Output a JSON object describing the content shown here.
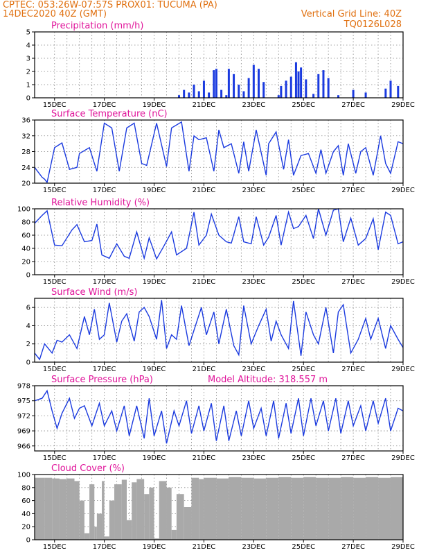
{
  "header": {
    "left1": "CPTEC:   053:26W-07:57S   PROX01: TUCUMA (PA)",
    "left2": "14DEC2020 40Z (GMT)",
    "right1": "Vertical Grid Line: 40Z",
    "right2": "TQ0126L028"
  },
  "colors": {
    "header": "#e07010",
    "panel_title": "#e0149a",
    "series": "#1a3adf",
    "cloud": "#a9a9a9"
  },
  "chart_data": [
    {
      "type": "bar",
      "title": "Precipitation (mm/h)",
      "x_ticks": [
        "15DEC",
        "17DEC",
        "19DEC",
        "21DEC",
        "23DEC",
        "25DEC",
        "27DEC",
        "29DEC"
      ],
      "xlim_days": [
        14.2,
        29.0
      ],
      "ylim": [
        0,
        5
      ],
      "yticks": [
        0,
        1,
        2,
        3,
        4,
        5
      ],
      "grid": true,
      "x": [
        20.0,
        20.2,
        20.4,
        20.6,
        20.8,
        21.0,
        21.2,
        21.4,
        21.5,
        21.7,
        21.9,
        22.0,
        22.2,
        22.4,
        22.6,
        22.8,
        23.0,
        23.2,
        23.4,
        24.0,
        24.1,
        24.3,
        24.5,
        24.7,
        24.8,
        24.9,
        25.1,
        25.4,
        25.6,
        25.8,
        26.0,
        26.4,
        27.0,
        27.5,
        28.3,
        28.5,
        28.8
      ],
      "values": [
        0.2,
        0.6,
        0.4,
        1.0,
        0.5,
        1.3,
        0.4,
        2.1,
        2.2,
        0.6,
        0.2,
        2.2,
        1.8,
        1.0,
        0.5,
        1.5,
        2.5,
        2.2,
        1.2,
        0.2,
        0.9,
        1.3,
        1.6,
        2.7,
        2.0,
        2.3,
        1.4,
        0.3,
        1.8,
        2.1,
        1.5,
        0.2,
        0.6,
        0.4,
        0.7,
        1.3,
        0.9
      ]
    },
    {
      "type": "line",
      "title": "Surface Temperature (nC)",
      "x_ticks": [
        "15DEC",
        "17DEC",
        "19DEC",
        "21DEC",
        "23DEC",
        "25DEC",
        "27DEC",
        "29DEC"
      ],
      "xlim_days": [
        14.2,
        29.0
      ],
      "ylim": [
        20,
        36
      ],
      "yticks": [
        20,
        24,
        28,
        32,
        36
      ],
      "grid": true,
      "x": [
        14.2,
        14.5,
        14.6,
        14.7,
        15.0,
        15.3,
        15.6,
        15.9,
        16.0,
        16.4,
        16.7,
        17.0,
        17.3,
        17.6,
        17.9,
        18.2,
        18.5,
        18.7,
        19.1,
        19.5,
        19.7,
        20.1,
        20.4,
        20.6,
        20.8,
        21.1,
        21.4,
        21.6,
        21.8,
        22.1,
        22.4,
        22.6,
        22.8,
        23.1,
        23.5,
        23.6,
        23.9,
        24.2,
        24.4,
        24.6,
        24.9,
        25.2,
        25.5,
        25.7,
        25.9,
        26.2,
        26.4,
        26.6,
        26.8,
        27.1,
        27.3,
        27.5,
        27.8,
        28.1,
        28.3,
        28.5,
        28.8,
        29.0
      ],
      "values": [
        24.0,
        21.5,
        21.0,
        20.2,
        29.0,
        30.2,
        23.5,
        24.0,
        27.5,
        29.0,
        23.0,
        35.2,
        34.0,
        23.0,
        34.0,
        35.2,
        25.0,
        24.5,
        35.2,
        24.2,
        34.0,
        35.5,
        23.0,
        32.0,
        31.0,
        31.5,
        23.0,
        33.5,
        29.0,
        30.0,
        22.5,
        30.5,
        23.0,
        33.5,
        22.0,
        30.0,
        33.0,
        23.5,
        31.0,
        22.0,
        27.0,
        27.5,
        22.5,
        28.5,
        22.5,
        28.0,
        29.5,
        22.0,
        30.0,
        22.5,
        28.0,
        29.0,
        22.0,
        32.0,
        25.0,
        22.5,
        30.5,
        30.0
      ]
    },
    {
      "type": "line",
      "title": "Relative Humidity (%)",
      "x_ticks": [
        "15DEC",
        "17DEC",
        "19DEC",
        "21DEC",
        "23DEC",
        "25DEC",
        "27DEC",
        "29DEC"
      ],
      "xlim_days": [
        14.2,
        29.0
      ],
      "ylim": [
        0,
        100
      ],
      "yticks": [
        0,
        20,
        40,
        60,
        80,
        100
      ],
      "grid": true,
      "x": [
        14.2,
        14.5,
        14.7,
        15.0,
        15.3,
        15.7,
        15.9,
        16.2,
        16.5,
        16.7,
        16.9,
        17.2,
        17.5,
        17.8,
        18.0,
        18.3,
        18.6,
        18.8,
        19.1,
        19.4,
        19.7,
        19.9,
        20.3,
        20.6,
        20.8,
        21.1,
        21.3,
        21.6,
        21.9,
        22.1,
        22.4,
        22.6,
        22.9,
        23.1,
        23.4,
        23.6,
        23.9,
        24.1,
        24.4,
        24.6,
        24.8,
        25.1,
        25.4,
        25.6,
        25.9,
        26.2,
        26.4,
        26.6,
        26.9,
        27.2,
        27.5,
        27.8,
        28.0,
        28.3,
        28.5,
        28.8,
        29.0
      ],
      "values": [
        78,
        90,
        97,
        45,
        44,
        68,
        76,
        50,
        52,
        77,
        30,
        25,
        47,
        28,
        25,
        65,
        25,
        56,
        24,
        44,
        65,
        30,
        40,
        95,
        45,
        60,
        92,
        60,
        50,
        48,
        88,
        50,
        47,
        88,
        45,
        57,
        90,
        45,
        95,
        70,
        73,
        90,
        55,
        100,
        60,
        98,
        100,
        50,
        86,
        45,
        55,
        85,
        38,
        95,
        90,
        47,
        50
      ]
    },
    {
      "type": "line",
      "title": "Surface Wind (m/s)",
      "x_ticks": [
        "15DEC",
        "17DEC",
        "19DEC",
        "21DEC",
        "23DEC",
        "25DEC",
        "27DEC",
        "29DEC"
      ],
      "xlim_days": [
        14.2,
        29.0
      ],
      "ylim": [
        0,
        7
      ],
      "yticks": [
        0,
        2,
        4,
        6
      ],
      "grid": true,
      "x": [
        14.2,
        14.4,
        14.6,
        14.9,
        15.1,
        15.3,
        15.6,
        15.9,
        16.2,
        16.4,
        16.6,
        16.8,
        17.0,
        17.2,
        17.5,
        17.7,
        17.9,
        18.2,
        18.4,
        18.6,
        18.8,
        19.1,
        19.3,
        19.5,
        19.7,
        19.9,
        20.1,
        20.4,
        20.6,
        20.9,
        21.1,
        21.4,
        21.6,
        21.9,
        22.2,
        22.4,
        22.6,
        22.9,
        23.2,
        23.5,
        23.7,
        23.9,
        24.1,
        24.4,
        24.6,
        24.9,
        25.1,
        25.4,
        25.6,
        25.9,
        26.2,
        26.4,
        26.6,
        26.9,
        27.2,
        27.5,
        27.7,
        28.0,
        28.3,
        28.5,
        28.8,
        29.0
      ],
      "values": [
        1.0,
        0.3,
        2.0,
        1.0,
        2.4,
        2.2,
        3.0,
        1.5,
        5.0,
        3.0,
        5.8,
        2.5,
        3.0,
        6.5,
        2.2,
        4.5,
        5.3,
        2.3,
        5.5,
        6.0,
        5.0,
        2.5,
        6.8,
        1.5,
        3.0,
        2.5,
        6.2,
        1.8,
        3.5,
        6.0,
        3.0,
        5.5,
        2.0,
        5.8,
        1.8,
        0.8,
        6.2,
        2.0,
        4.0,
        5.8,
        2.3,
        4.5,
        3.0,
        1.5,
        6.7,
        0.7,
        5.5,
        3.0,
        2.0,
        6.0,
        1.0,
        5.5,
        6.3,
        1.0,
        2.5,
        4.8,
        2.5,
        4.8,
        1.5,
        4.0,
        2.5,
        1.6
      ]
    },
    {
      "type": "line",
      "title": "Surface Pressure (hPa)",
      "annotation": "Model Altitude: 318.557 m",
      "x_ticks": [
        "15DEC",
        "17DEC",
        "19DEC",
        "21DEC",
        "23DEC",
        "25DEC",
        "27DEC",
        "29DEC"
      ],
      "xlim_days": [
        14.2,
        29.0
      ],
      "ylim": [
        965,
        978
      ],
      "yticks": [
        966,
        969,
        972,
        975,
        978
      ],
      "grid": true,
      "x": [
        14.2,
        14.5,
        14.7,
        14.9,
        15.1,
        15.3,
        15.6,
        15.8,
        16.0,
        16.2,
        16.5,
        16.8,
        17.0,
        17.3,
        17.5,
        17.8,
        18.0,
        18.3,
        18.6,
        18.8,
        19.0,
        19.3,
        19.5,
        19.8,
        20.0,
        20.3,
        20.5,
        20.8,
        21.0,
        21.3,
        21.5,
        21.8,
        22.0,
        22.3,
        22.5,
        22.8,
        23.0,
        23.3,
        23.5,
        23.8,
        24.0,
        24.3,
        24.5,
        24.8,
        25.0,
        25.3,
        25.5,
        25.8,
        26.0,
        26.3,
        26.5,
        26.8,
        27.0,
        27.3,
        27.5,
        27.8,
        28.0,
        28.3,
        28.5,
        28.8,
        29.0
      ],
      "values": [
        975.0,
        975.5,
        977.0,
        973.0,
        969.5,
        972.5,
        975.5,
        971.5,
        973.5,
        974.0,
        970.0,
        974.5,
        970.0,
        973.0,
        969.0,
        974.0,
        968.0,
        974.0,
        967.5,
        975.5,
        968.0,
        973.0,
        966.5,
        973.0,
        970.0,
        975.0,
        968.5,
        974.0,
        969.0,
        974.5,
        967.0,
        974.0,
        967.0,
        973.0,
        968.0,
        975.0,
        969.5,
        973.5,
        968.0,
        975.0,
        967.5,
        974.5,
        968.5,
        975.5,
        968.0,
        975.5,
        970.0,
        975.0,
        969.0,
        975.5,
        968.5,
        975.0,
        970.0,
        974.0,
        969.0,
        975.0,
        970.5,
        975.5,
        969.0,
        973.5,
        973.0
      ]
    },
    {
      "type": "area",
      "title": "Cloud Cover (%)",
      "x_ticks": [
        "15DEC",
        "17DEC",
        "19DEC",
        "21DEC",
        "23DEC",
        "25DEC",
        "27DEC",
        "29DEC"
      ],
      "xlim_days": [
        14.2,
        29.0
      ],
      "ylim": [
        0,
        100
      ],
      "yticks": [
        0,
        20,
        40,
        60,
        80,
        100
      ],
      "grid": true,
      "x": [
        14.2,
        14.6,
        14.9,
        15.2,
        15.5,
        15.8,
        16.0,
        16.2,
        16.4,
        16.6,
        16.7,
        16.9,
        17.0,
        17.2,
        17.4,
        17.7,
        17.9,
        18.1,
        18.3,
        18.6,
        18.8,
        19.0,
        19.2,
        19.5,
        19.7,
        19.9,
        20.2,
        20.5,
        20.8,
        21.0,
        21.5,
        22.0,
        22.5,
        23.0,
        23.5,
        24.0,
        24.5,
        25.0,
        25.5,
        26.0,
        26.5,
        27.0,
        27.5,
        28.0,
        28.5,
        29.0
      ],
      "values": [
        95,
        95,
        94,
        93,
        94,
        90,
        60,
        10,
        85,
        20,
        40,
        90,
        5,
        60,
        85,
        92,
        30,
        88,
        93,
        70,
        80,
        2,
        90,
        80,
        15,
        70,
        50,
        95,
        93,
        95,
        94,
        96,
        95,
        94,
        95,
        96,
        95,
        96,
        95,
        95,
        96,
        95,
        96,
        95,
        96,
        96
      ]
    }
  ]
}
